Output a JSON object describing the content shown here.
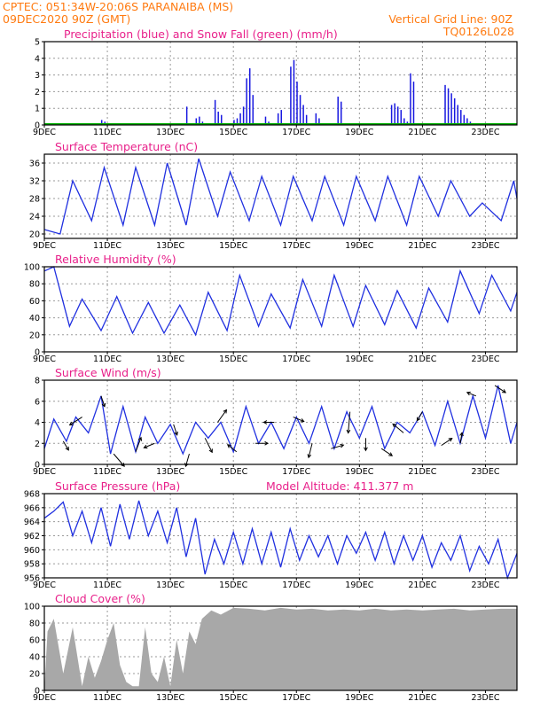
{
  "header": {
    "line1": "CPTEC:   051:34W-20:06S   PARANAIBA (MS)",
    "line2": "09DEC2020 90Z (GMT)",
    "grid_note": "Vertical Grid Line: 90Z",
    "model": "TQ0126L028",
    "color": "#ff7a10"
  },
  "colors": {
    "title": "#e8208a",
    "precip": "#1818e0",
    "snow": "#00b000",
    "line": "#2030e0",
    "cloud": "#a8a8a8",
    "grid": "#9a9a9a",
    "arrow": "#000000"
  },
  "x_ticks": [
    "9DEC",
    "11DEC",
    "13DEC",
    "15DEC",
    "17DEC",
    "19DEC",
    "21DEC",
    "23DEC"
  ],
  "chart_data": [
    {
      "type": "bar",
      "id": "precip",
      "title": "Precipitation (blue) and Snow Fall (green) (mm/h)",
      "ylim": [
        0,
        5
      ],
      "yticks": [
        "0",
        "1",
        "2",
        "3",
        "4",
        "5"
      ],
      "bar_width_days": 0.1,
      "series": [
        {
          "name": "Precipitation",
          "x": [
            1.8,
            1.9,
            4.5,
            4.8,
            4.9,
            5.0,
            5.4,
            5.5,
            5.6,
            6.0,
            6.1,
            6.2,
            6.3,
            6.4,
            6.5,
            6.6,
            7.0,
            7.1,
            7.4,
            7.5,
            7.8,
            7.9,
            8.0,
            8.1,
            8.2,
            8.3,
            8.6,
            8.7,
            9.3,
            9.4,
            11.0,
            11.1,
            11.2,
            11.3,
            11.4,
            11.5,
            11.6,
            11.7,
            12.7,
            12.8,
            12.9,
            13.0,
            13.1,
            13.2,
            13.3,
            13.4,
            13.5,
            13.6,
            13.7
          ],
          "values": [
            0.3,
            0.2,
            1.1,
            0.4,
            0.5,
            0.2,
            1.5,
            0.8,
            0.6,
            0.3,
            0.4,
            0.7,
            1.1,
            2.8,
            3.4,
            1.8,
            0.5,
            0.2,
            0.7,
            0.9,
            3.5,
            3.9,
            2.6,
            1.8,
            1.2,
            0.6,
            0.7,
            0.4,
            1.7,
            1.4,
            1.2,
            1.3,
            1.1,
            0.9,
            0.4,
            0.2,
            3.1,
            2.6,
            2.4,
            2.2,
            1.9,
            1.6,
            1.2,
            0.9,
            0.6,
            0.4,
            0.2,
            0.1,
            0.1
          ]
        },
        {
          "name": "Snow Fall",
          "x": [
            0,
            15
          ],
          "values": [
            0,
            0
          ]
        }
      ]
    },
    {
      "type": "line",
      "id": "temp",
      "title": "Surface Temperature (nC)",
      "ylim": [
        19,
        38
      ],
      "yticks": [
        "20",
        "24",
        "28",
        "32",
        "36"
      ],
      "x": [
        0,
        0.5,
        0.9,
        1.5,
        1.9,
        2.5,
        2.9,
        3.5,
        3.9,
        4.5,
        4.9,
        5.5,
        5.9,
        6.5,
        6.9,
        7.5,
        7.9,
        8.5,
        8.9,
        9.5,
        9.9,
        10.5,
        10.9,
        11.5,
        11.9,
        12.5,
        12.9,
        13.5,
        13.9,
        14.5,
        14.9,
        15.0
      ],
      "values": [
        21,
        20,
        32,
        23,
        35,
        22,
        35,
        22,
        36,
        22,
        37,
        24,
        34,
        23,
        33,
        22,
        33,
        23,
        33,
        22,
        33,
        23,
        33,
        22,
        33,
        24,
        32,
        24,
        27,
        23,
        32,
        28
      ]
    },
    {
      "type": "line",
      "id": "rh",
      "title": "Relative Humidity (%)",
      "ylim": [
        0,
        100
      ],
      "yticks": [
        "0",
        "20",
        "40",
        "60",
        "80",
        "100"
      ],
      "x": [
        0,
        0.3,
        0.8,
        1.2,
        1.8,
        2.3,
        2.8,
        3.3,
        3.8,
        4.3,
        4.8,
        5.2,
        5.8,
        6.2,
        6.8,
        7.2,
        7.8,
        8.2,
        8.8,
        9.2,
        9.8,
        10.2,
        10.8,
        11.2,
        11.8,
        12.2,
        12.8,
        13.2,
        13.8,
        14.2,
        14.8,
        15.0
      ],
      "values": [
        95,
        100,
        30,
        62,
        25,
        65,
        22,
        58,
        22,
        55,
        20,
        70,
        25,
        90,
        30,
        68,
        28,
        85,
        30,
        90,
        30,
        78,
        32,
        72,
        28,
        75,
        35,
        95,
        45,
        90,
        48,
        70
      ]
    },
    {
      "type": "line",
      "id": "wind",
      "title": "Surface Wind (m/s)",
      "ylim": [
        0,
        8
      ],
      "yticks": [
        "0",
        "2",
        "4",
        "6",
        "8"
      ],
      "x": [
        0,
        0.3,
        0.7,
        1.0,
        1.4,
        1.8,
        2.1,
        2.5,
        2.9,
        3.2,
        3.6,
        4.0,
        4.4,
        4.8,
        5.2,
        5.6,
        6.0,
        6.4,
        6.8,
        7.2,
        7.6,
        8.0,
        8.4,
        8.8,
        9.2,
        9.6,
        10.0,
        10.4,
        10.8,
        11.2,
        11.6,
        12.0,
        12.4,
        12.8,
        13.2,
        13.6,
        14.0,
        14.4,
        14.8,
        15.0
      ],
      "values": [
        1.5,
        4.3,
        2.2,
        4.5,
        3.0,
        6.5,
        1.0,
        5.5,
        1.2,
        4.5,
        2.0,
        3.8,
        1.0,
        4.0,
        2.5,
        4.0,
        1.2,
        5.5,
        2.0,
        4.0,
        1.5,
        4.5,
        2.0,
        5.5,
        1.5,
        5.0,
        2.5,
        5.5,
        1.5,
        4.0,
        3.0,
        5.0,
        1.8,
        6.0,
        2.0,
        6.5,
        2.5,
        7.5,
        2.0,
        4.0
      ],
      "arrows": [
        {
          "x": 0.6,
          "dx": 6,
          "dy": 10
        },
        {
          "x": 1.2,
          "dx": -14,
          "dy": 9
        },
        {
          "x": 1.8,
          "dx": 4,
          "dy": 12
        },
        {
          "x": 2.2,
          "dx": 12,
          "dy": 14
        },
        {
          "x": 2.9,
          "dx": 6,
          "dy": -16
        },
        {
          "x": 3.5,
          "dx": -12,
          "dy": 5
        },
        {
          "x": 4.1,
          "dx": 4,
          "dy": 12
        },
        {
          "x": 4.6,
          "dx": -4,
          "dy": 14
        },
        {
          "x": 5.1,
          "dx": 8,
          "dy": 16
        },
        {
          "x": 5.5,
          "dx": 10,
          "dy": -14
        },
        {
          "x": 6.1,
          "dx": -10,
          "dy": -8
        },
        {
          "x": 6.7,
          "dx": 14,
          "dy": 0
        },
        {
          "x": 7.3,
          "dx": -12,
          "dy": 0
        },
        {
          "x": 7.9,
          "dx": 12,
          "dy": 5
        },
        {
          "x": 8.5,
          "dx": -4,
          "dy": 16
        },
        {
          "x": 9.1,
          "dx": 14,
          "dy": -4
        },
        {
          "x": 9.7,
          "dx": -2,
          "dy": 24
        },
        {
          "x": 10.2,
          "dx": 0,
          "dy": 14
        },
        {
          "x": 10.7,
          "dx": 12,
          "dy": 8
        },
        {
          "x": 11.4,
          "dx": -12,
          "dy": -10
        },
        {
          "x": 12.0,
          "dx": -6,
          "dy": 10
        },
        {
          "x": 12.6,
          "dx": 12,
          "dy": -8
        },
        {
          "x": 13.2,
          "dx": 2,
          "dy": -12
        },
        {
          "x": 13.7,
          "dx": -10,
          "dy": -4
        },
        {
          "x": 14.3,
          "dx": 12,
          "dy": 8
        }
      ]
    },
    {
      "type": "line",
      "id": "pressure",
      "title": "Surface Pressure (hPa)",
      "annotation": "Model Altitude: 411.377  m",
      "ylim": [
        956,
        968
      ],
      "yticks": [
        "956",
        "958",
        "960",
        "962",
        "964",
        "966",
        "968"
      ],
      "x": [
        0,
        0.3,
        0.6,
        0.9,
        1.2,
        1.5,
        1.8,
        2.1,
        2.4,
        2.7,
        3.0,
        3.3,
        3.6,
        3.9,
        4.2,
        4.5,
        4.8,
        5.1,
        5.4,
        5.7,
        6.0,
        6.3,
        6.6,
        6.9,
        7.2,
        7.5,
        7.8,
        8.1,
        8.4,
        8.7,
        9.0,
        9.3,
        9.6,
        9.9,
        10.2,
        10.5,
        10.8,
        11.1,
        11.4,
        11.7,
        12.0,
        12.3,
        12.6,
        12.9,
        13.2,
        13.5,
        13.8,
        14.1,
        14.4,
        14.7,
        15.0
      ],
      "values": [
        964.5,
        965.5,
        966.8,
        962.0,
        965.5,
        961.0,
        966.0,
        960.5,
        966.5,
        961.5,
        967.0,
        962.0,
        965.5,
        961.0,
        966.0,
        959.0,
        964.5,
        956.5,
        961.5,
        958.0,
        962.5,
        958.0,
        963.0,
        958.0,
        962.5,
        957.5,
        963.0,
        958.5,
        962.0,
        959.0,
        962.0,
        958.0,
        962.0,
        959.5,
        962.5,
        958.5,
        962.5,
        958.0,
        962.0,
        958.5,
        962.0,
        957.5,
        961.0,
        958.5,
        962.0,
        957.0,
        960.5,
        958.0,
        961.5,
        956.0,
        959.5
      ]
    },
    {
      "type": "area",
      "id": "cloud",
      "title": "Cloud Cover (%)",
      "ylim": [
        0,
        100
      ],
      "yticks": [
        "0",
        "20",
        "40",
        "60",
        "80",
        "100"
      ],
      "x": [
        0,
        0.1,
        0.3,
        0.6,
        0.9,
        1.2,
        1.4,
        1.6,
        1.8,
        2.0,
        2.2,
        2.4,
        2.6,
        2.8,
        3.0,
        3.2,
        3.4,
        3.6,
        3.8,
        4.0,
        4.2,
        4.4,
        4.6,
        4.8,
        5.0,
        5.3,
        5.6,
        6.0,
        6.5,
        7.0,
        7.5,
        8.0,
        8.5,
        9.0,
        9.5,
        10.0,
        10.5,
        11.0,
        11.5,
        12.0,
        12.5,
        13.0,
        13.5,
        14.0,
        14.5,
        15.0
      ],
      "values": [
        0,
        70,
        85,
        20,
        75,
        5,
        40,
        15,
        35,
        60,
        80,
        30,
        10,
        5,
        5,
        75,
        20,
        10,
        40,
        5,
        60,
        20,
        70,
        55,
        85,
        95,
        90,
        98,
        97,
        95,
        98,
        96,
        97,
        95,
        96,
        95,
        97,
        95,
        96,
        95,
        96,
        97,
        95,
        96,
        97,
        97
      ]
    }
  ]
}
